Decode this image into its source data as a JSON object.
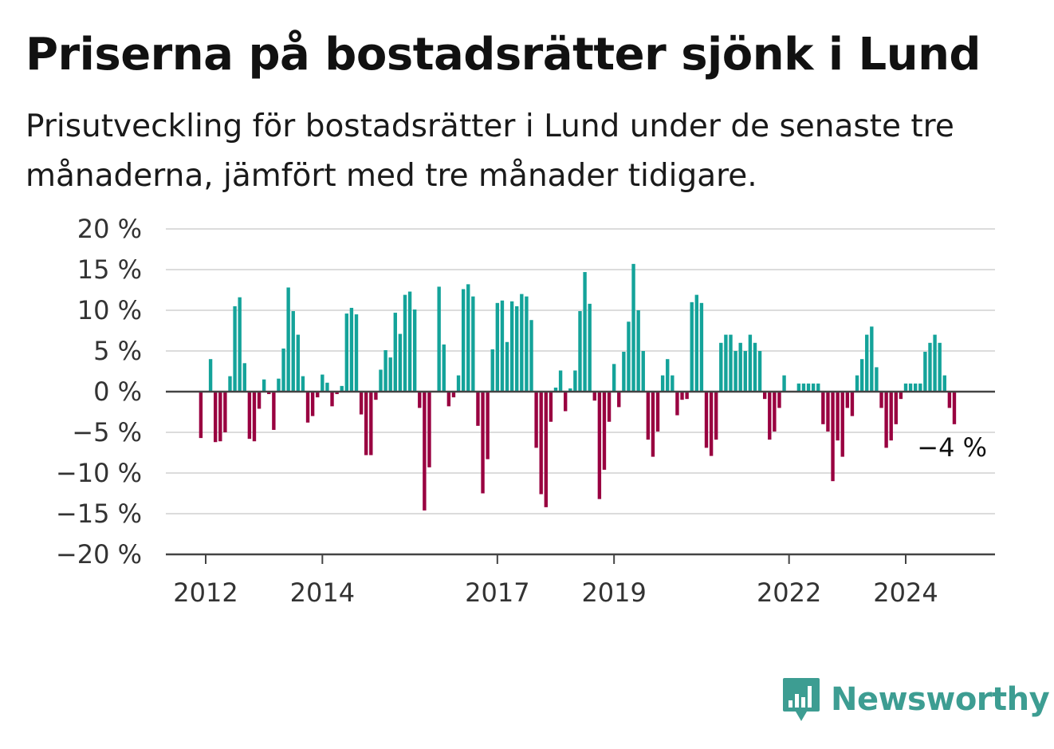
{
  "title": "Priserna på bostadsrätter sjönk i Lund",
  "subtitle": "Prisutveckling för bostadsrätter i Lund under de senaste tre månaderna, jämfört med tre månader tidigare.",
  "brand": {
    "name": "Newsworthy",
    "color": "#3d9d92",
    "icon": "newsworthy-bar-chart-icon"
  },
  "chart_data": {
    "type": "bar",
    "title": "Priserna på bostadsrätter sjönk i Lund",
    "subtitle": "Prisutveckling för bostadsrätter i Lund under de senaste tre månaderna, jämfört med tre månader tidigare.",
    "xlabel": "",
    "ylabel": "",
    "ylim": [
      -20,
      20
    ],
    "yticks": [
      20,
      15,
      10,
      5,
      0,
      -5,
      -10,
      -15,
      -20
    ],
    "ytick_labels": [
      "20 %",
      "15 %",
      "10 %",
      "5 %",
      "0 %",
      "−5 %",
      "−10 %",
      "−15 %",
      "−20 %"
    ],
    "xticks": [
      "2012",
      "2014",
      "2017",
      "2019",
      "2022",
      "2024"
    ],
    "grid": true,
    "positive_color": "#14a39a",
    "negative_color": "#990040",
    "frequency": "monthly",
    "first_period": "2011-12",
    "last_value_label": "−4 %",
    "values": [
      -5.7,
      0,
      4,
      -6.2,
      -6.1,
      -5,
      1.9,
      10.5,
      11.6,
      3.5,
      -5.8,
      -6.1,
      -2.1,
      1.5,
      -0.3,
      -4.7,
      1.6,
      5.3,
      12.8,
      9.9,
      7,
      1.9,
      -3.8,
      -3,
      -0.7,
      2.1,
      1.1,
      -1.8,
      -0.3,
      0.7,
      9.6,
      10.3,
      9.5,
      -2.8,
      -7.8,
      -7.8,
      -1,
      2.7,
      5.1,
      4.2,
      9.7,
      7.1,
      11.9,
      12.3,
      10.1,
      -2,
      -14.6,
      -9.3,
      0,
      12.9,
      5.8,
      -1.8,
      -0.7,
      2,
      12.6,
      13.2,
      11.7,
      -4.2,
      -12.5,
      -8.3,
      5.2,
      10.9,
      11.2,
      6.1,
      11.1,
      10.5,
      12,
      11.7,
      8.8,
      -6.9,
      -12.6,
      -14.2,
      -3.7,
      0.5,
      2.6,
      -2.4,
      0.4,
      2.6,
      9.9,
      14.7,
      10.8,
      -1.1,
      -13.2,
      -9.6,
      -3.7,
      3.4,
      -1.9,
      4.9,
      8.6,
      15.7,
      10,
      5,
      -5.9,
      -8,
      -4.9,
      2,
      4,
      2,
      -2.9,
      -1,
      -0.9,
      11,
      11.9,
      10.9,
      -6.9,
      -7.9,
      -5.9,
      6,
      7,
      7,
      5,
      6,
      5,
      7,
      6,
      5,
      -0.9,
      -5.9,
      -4.9,
      -2,
      2,
      0,
      0,
      1,
      1,
      1,
      1,
      1,
      -4,
      -4.9,
      -11,
      -6,
      -8,
      -2,
      -3,
      2,
      4,
      7,
      8,
      3,
      -2,
      -6.9,
      -6,
      -4,
      -0.9,
      1,
      1,
      1,
      1,
      4.9,
      6,
      7,
      6,
      2,
      -2,
      -4
    ]
  }
}
